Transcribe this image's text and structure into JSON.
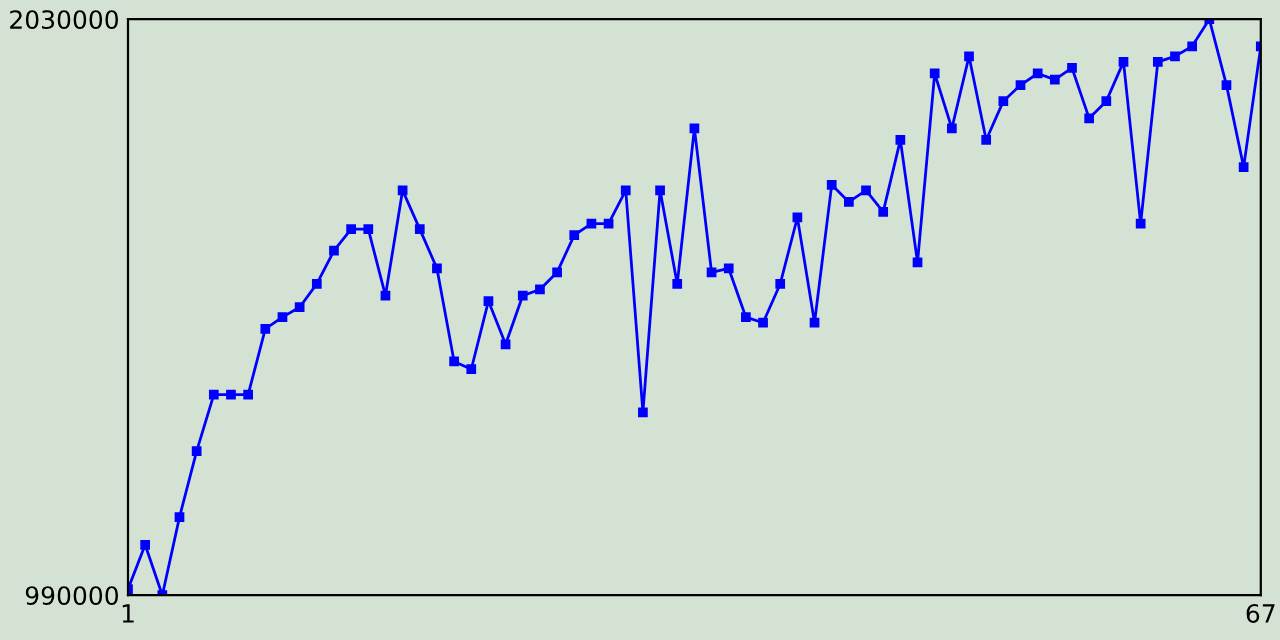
{
  "chart_data": {
    "type": "line",
    "x": [
      1,
      2,
      3,
      4,
      5,
      6,
      7,
      8,
      9,
      10,
      11,
      12,
      13,
      14,
      15,
      16,
      17,
      18,
      19,
      20,
      21,
      22,
      23,
      24,
      25,
      26,
      27,
      28,
      29,
      30,
      31,
      32,
      33,
      34,
      35,
      36,
      37,
      38,
      39,
      40,
      41,
      42,
      43,
      44,
      45,
      46,
      47,
      48,
      49,
      50,
      51,
      52,
      53,
      54,
      55,
      56,
      57,
      58,
      59,
      60,
      61,
      62,
      63,
      64,
      65,
      66,
      67
    ],
    "series": [
      {
        "color": "#0000ff",
        "values": [
          1001000,
          1081000,
          990000,
          1131000,
          1250000,
          1352000,
          1352000,
          1352000,
          1471000,
          1492000,
          1510000,
          1552000,
          1612000,
          1651000,
          1651000,
          1531000,
          1721000,
          1651000,
          1580000,
          1412000,
          1398000,
          1521000,
          1443000,
          1531000,
          1542000,
          1573000,
          1640000,
          1661000,
          1661000,
          1721000,
          1320000,
          1721000,
          1552000,
          1833000,
          1573000,
          1580000,
          1492000,
          1482000,
          1552000,
          1672000,
          1482000,
          1731000,
          1700000,
          1721000,
          1682000,
          1812000,
          1591000,
          1932000,
          1833000,
          1963000,
          1812000,
          1882000,
          1911000,
          1932000,
          1921000,
          1942000,
          1851000,
          1882000,
          1953000,
          1661000,
          1953000,
          1963000,
          1981000,
          2030000,
          1911000,
          1763000,
          1981000
        ]
      }
    ],
    "xlim": [
      1,
      67
    ],
    "xticks": [
      1,
      67
    ],
    "ylim": [
      990000,
      2030000
    ],
    "yticks": [
      990000,
      2030000
    ],
    "marker": "square",
    "line_style": "solid",
    "grid": false,
    "legend": false
  }
}
